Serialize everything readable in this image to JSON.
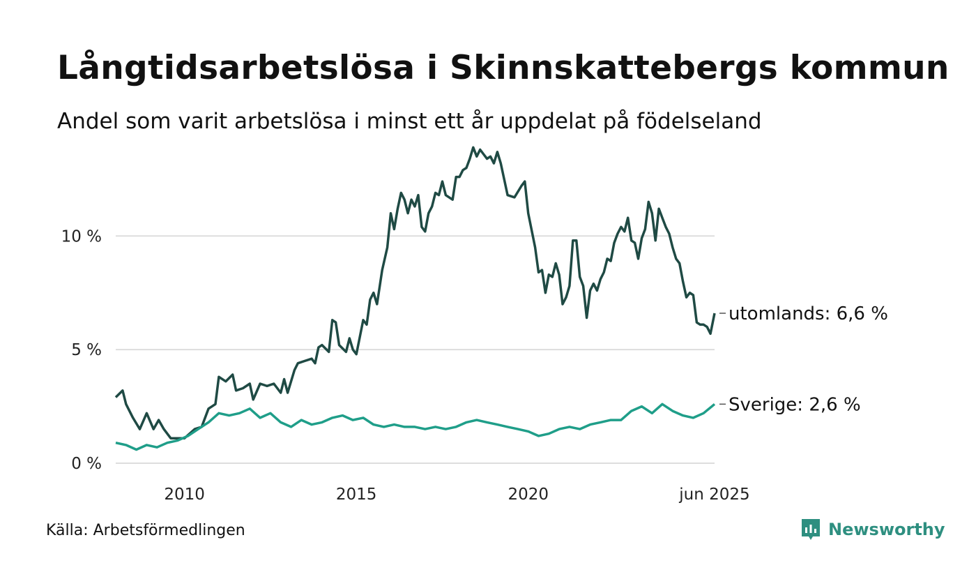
{
  "title": "Långtidsarbetslösa i Skinnskattebergs kommun",
  "subtitle": "Andel som varit arbetslösa i minst ett år uppdelat på födelseland",
  "source": "Källa: Arbetsförmedlingen",
  "brand": "Newsworthy",
  "colors": {
    "utomlands": "#1f4a44",
    "sverige": "#1f9e89",
    "grid": "#dddddd",
    "brand": "#2e8f80"
  },
  "chart_data": {
    "type": "line",
    "x_range": [
      2008.0,
      2025.42
    ],
    "ylim": [
      0,
      14
    ],
    "y_ticks": [
      {
        "value": 0,
        "label": "0 %"
      },
      {
        "value": 5,
        "label": "5 %"
      },
      {
        "value": 10,
        "label": "10 %"
      }
    ],
    "x_ticks": [
      {
        "value": 2010,
        "label": "2010"
      },
      {
        "value": 2015,
        "label": "2015"
      },
      {
        "value": 2020,
        "label": "2020"
      },
      {
        "value": 2025.42,
        "label": "jun 2025"
      }
    ],
    "grid": true,
    "series": [
      {
        "key": "utomlands",
        "end_label": "utomlands: 6,6 %",
        "color": "#1f4a44",
        "points": [
          [
            2008.0,
            2.9
          ],
          [
            2008.2,
            3.2
          ],
          [
            2008.3,
            2.6
          ],
          [
            2008.5,
            2.0
          ],
          [
            2008.7,
            1.5
          ],
          [
            2008.9,
            2.2
          ],
          [
            2009.1,
            1.5
          ],
          [
            2009.25,
            1.9
          ],
          [
            2009.4,
            1.5
          ],
          [
            2009.6,
            1.1
          ],
          [
            2010.0,
            1.1
          ],
          [
            2010.3,
            1.5
          ],
          [
            2010.5,
            1.6
          ],
          [
            2010.7,
            2.4
          ],
          [
            2010.9,
            2.6
          ],
          [
            2011.0,
            3.8
          ],
          [
            2011.2,
            3.6
          ],
          [
            2011.4,
            3.9
          ],
          [
            2011.5,
            3.2
          ],
          [
            2011.7,
            3.3
          ],
          [
            2011.9,
            3.5
          ],
          [
            2012.0,
            2.8
          ],
          [
            2012.2,
            3.5
          ],
          [
            2012.4,
            3.4
          ],
          [
            2012.6,
            3.5
          ],
          [
            2012.8,
            3.1
          ],
          [
            2012.9,
            3.7
          ],
          [
            2013.0,
            3.1
          ],
          [
            2013.2,
            4.1
          ],
          [
            2013.3,
            4.4
          ],
          [
            2013.5,
            4.5
          ],
          [
            2013.7,
            4.6
          ],
          [
            2013.8,
            4.4
          ],
          [
            2013.9,
            5.1
          ],
          [
            2014.0,
            5.2
          ],
          [
            2014.2,
            4.9
          ],
          [
            2014.3,
            6.3
          ],
          [
            2014.4,
            6.2
          ],
          [
            2014.5,
            5.2
          ],
          [
            2014.7,
            4.9
          ],
          [
            2014.8,
            5.5
          ],
          [
            2014.9,
            5.0
          ],
          [
            2015.0,
            4.8
          ],
          [
            2015.2,
            6.3
          ],
          [
            2015.3,
            6.1
          ],
          [
            2015.4,
            7.2
          ],
          [
            2015.5,
            7.5
          ],
          [
            2015.6,
            7.0
          ],
          [
            2015.75,
            8.5
          ],
          [
            2015.9,
            9.5
          ],
          [
            2016.0,
            11.0
          ],
          [
            2016.1,
            10.3
          ],
          [
            2016.2,
            11.2
          ],
          [
            2016.3,
            11.9
          ],
          [
            2016.4,
            11.6
          ],
          [
            2016.5,
            11.0
          ],
          [
            2016.6,
            11.6
          ],
          [
            2016.7,
            11.3
          ],
          [
            2016.8,
            11.8
          ],
          [
            2016.9,
            10.4
          ],
          [
            2017.0,
            10.2
          ],
          [
            2017.1,
            11.0
          ],
          [
            2017.2,
            11.3
          ],
          [
            2017.3,
            11.9
          ],
          [
            2017.4,
            11.8
          ],
          [
            2017.5,
            12.4
          ],
          [
            2017.6,
            11.8
          ],
          [
            2017.8,
            11.6
          ],
          [
            2017.9,
            12.6
          ],
          [
            2018.0,
            12.6
          ],
          [
            2018.1,
            12.9
          ],
          [
            2018.2,
            13.0
          ],
          [
            2018.3,
            13.4
          ],
          [
            2018.4,
            13.9
          ],
          [
            2018.5,
            13.5
          ],
          [
            2018.6,
            13.8
          ],
          [
            2018.7,
            13.6
          ],
          [
            2018.8,
            13.4
          ],
          [
            2018.9,
            13.5
          ],
          [
            2019.0,
            13.2
          ],
          [
            2019.1,
            13.7
          ],
          [
            2019.2,
            13.2
          ],
          [
            2019.4,
            11.8
          ],
          [
            2019.6,
            11.7
          ],
          [
            2019.8,
            12.2
          ],
          [
            2019.9,
            12.4
          ],
          [
            2020.0,
            11.0
          ],
          [
            2020.2,
            9.5
          ],
          [
            2020.3,
            8.4
          ],
          [
            2020.4,
            8.5
          ],
          [
            2020.5,
            7.5
          ],
          [
            2020.6,
            8.3
          ],
          [
            2020.7,
            8.2
          ],
          [
            2020.8,
            8.8
          ],
          [
            2020.9,
            8.3
          ],
          [
            2021.0,
            7.0
          ],
          [
            2021.1,
            7.3
          ],
          [
            2021.2,
            7.8
          ],
          [
            2021.3,
            9.8
          ],
          [
            2021.4,
            9.8
          ],
          [
            2021.5,
            8.2
          ],
          [
            2021.6,
            7.8
          ],
          [
            2021.7,
            6.4
          ],
          [
            2021.8,
            7.6
          ],
          [
            2021.9,
            7.9
          ],
          [
            2022.0,
            7.6
          ],
          [
            2022.1,
            8.1
          ],
          [
            2022.2,
            8.4
          ],
          [
            2022.3,
            9.0
          ],
          [
            2022.4,
            8.9
          ],
          [
            2022.5,
            9.7
          ],
          [
            2022.6,
            10.1
          ],
          [
            2022.7,
            10.4
          ],
          [
            2022.8,
            10.2
          ],
          [
            2022.9,
            10.8
          ],
          [
            2023.0,
            9.8
          ],
          [
            2023.1,
            9.7
          ],
          [
            2023.2,
            9.0
          ],
          [
            2023.3,
            9.9
          ],
          [
            2023.4,
            10.3
          ],
          [
            2023.5,
            11.5
          ],
          [
            2023.6,
            11.0
          ],
          [
            2023.7,
            9.8
          ],
          [
            2023.8,
            11.2
          ],
          [
            2023.9,
            10.8
          ],
          [
            2024.0,
            10.4
          ],
          [
            2024.1,
            10.1
          ],
          [
            2024.2,
            9.5
          ],
          [
            2024.3,
            9.0
          ],
          [
            2024.4,
            8.8
          ],
          [
            2024.5,
            8.0
          ],
          [
            2024.6,
            7.3
          ],
          [
            2024.7,
            7.5
          ],
          [
            2024.8,
            7.4
          ],
          [
            2024.9,
            6.2
          ],
          [
            2025.0,
            6.1
          ],
          [
            2025.1,
            6.1
          ],
          [
            2025.2,
            6.0
          ],
          [
            2025.3,
            5.7
          ],
          [
            2025.42,
            6.6
          ]
        ]
      },
      {
        "key": "sverige",
        "end_label": "Sverige: 2,6 %",
        "color": "#1f9e89",
        "points": [
          [
            2008.0,
            0.9
          ],
          [
            2008.3,
            0.8
          ],
          [
            2008.6,
            0.6
          ],
          [
            2008.9,
            0.8
          ],
          [
            2009.2,
            0.7
          ],
          [
            2009.5,
            0.9
          ],
          [
            2009.8,
            1.0
          ],
          [
            2010.1,
            1.2
          ],
          [
            2010.4,
            1.5
          ],
          [
            2010.7,
            1.8
          ],
          [
            2011.0,
            2.2
          ],
          [
            2011.3,
            2.1
          ],
          [
            2011.6,
            2.2
          ],
          [
            2011.9,
            2.4
          ],
          [
            2012.2,
            2.0
          ],
          [
            2012.5,
            2.2
          ],
          [
            2012.8,
            1.8
          ],
          [
            2013.1,
            1.6
          ],
          [
            2013.4,
            1.9
          ],
          [
            2013.7,
            1.7
          ],
          [
            2014.0,
            1.8
          ],
          [
            2014.3,
            2.0
          ],
          [
            2014.6,
            2.1
          ],
          [
            2014.9,
            1.9
          ],
          [
            2015.2,
            2.0
          ],
          [
            2015.5,
            1.7
          ],
          [
            2015.8,
            1.6
          ],
          [
            2016.1,
            1.7
          ],
          [
            2016.4,
            1.6
          ],
          [
            2016.7,
            1.6
          ],
          [
            2017.0,
            1.5
          ],
          [
            2017.3,
            1.6
          ],
          [
            2017.6,
            1.5
          ],
          [
            2017.9,
            1.6
          ],
          [
            2018.2,
            1.8
          ],
          [
            2018.5,
            1.9
          ],
          [
            2018.8,
            1.8
          ],
          [
            2019.1,
            1.7
          ],
          [
            2019.4,
            1.6
          ],
          [
            2019.7,
            1.5
          ],
          [
            2020.0,
            1.4
          ],
          [
            2020.3,
            1.2
          ],
          [
            2020.6,
            1.3
          ],
          [
            2020.9,
            1.5
          ],
          [
            2021.2,
            1.6
          ],
          [
            2021.5,
            1.5
          ],
          [
            2021.8,
            1.7
          ],
          [
            2022.1,
            1.8
          ],
          [
            2022.4,
            1.9
          ],
          [
            2022.7,
            1.9
          ],
          [
            2023.0,
            2.3
          ],
          [
            2023.3,
            2.5
          ],
          [
            2023.6,
            2.2
          ],
          [
            2023.9,
            2.6
          ],
          [
            2024.2,
            2.3
          ],
          [
            2024.5,
            2.1
          ],
          [
            2024.8,
            2.0
          ],
          [
            2025.1,
            2.2
          ],
          [
            2025.42,
            2.6
          ]
        ]
      }
    ]
  }
}
